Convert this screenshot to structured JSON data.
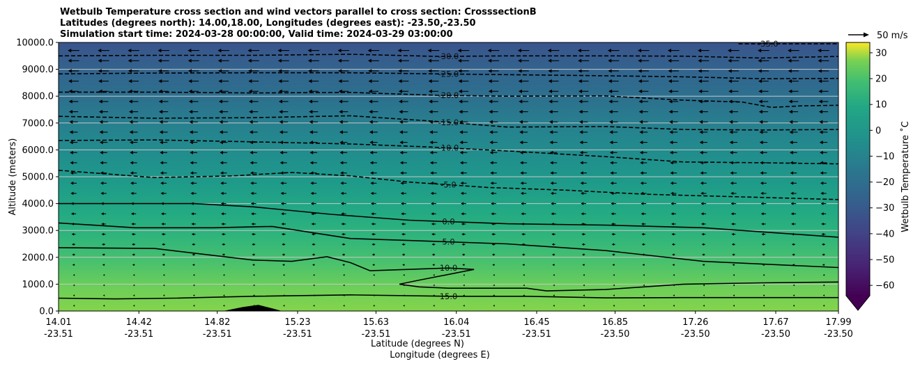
{
  "chart_data": {
    "type": "contour",
    "title_lines": [
      "Wetbulb Temperature cross section and wind vectors parallel to cross section: CrosssectionB",
      "Latitudes (degrees north): 14.00,18.00, Longitudes (degrees east): -23.50,-23.50",
      "Simulation start time: 2024-03-28 00:00:00, Valid time: 2024-03-29 03:00:00"
    ],
    "xlabel_lat": "Latitude (degrees N)",
    "xlabel_lon": "Longitude (degrees E)",
    "ylabel": "Altitude (meters)",
    "xlim": [
      14.01,
      17.99
    ],
    "ylim": [
      0,
      10000
    ],
    "x_ticks": [
      {
        "lat": "14.01",
        "lon": "-23.51",
        "value": 14.01
      },
      {
        "lat": "14.42",
        "lon": "-23.51",
        "value": 14.42
      },
      {
        "lat": "14.82",
        "lon": "-23.51",
        "value": 14.82
      },
      {
        "lat": "15.23",
        "lon": "-23.51",
        "value": 15.23
      },
      {
        "lat": "15.63",
        "lon": "-23.51",
        "value": 15.63
      },
      {
        "lat": "16.04",
        "lon": "-23.51",
        "value": 16.04
      },
      {
        "lat": "16.45",
        "lon": "-23.51",
        "value": 16.45
      },
      {
        "lat": "16.85",
        "lon": "-23.50",
        "value": 16.85
      },
      {
        "lat": "17.26",
        "lon": "-23.50",
        "value": 17.26
      },
      {
        "lat": "17.67",
        "lon": "-23.50",
        "value": 17.67
      },
      {
        "lat": "17.99",
        "lon": "-23.50",
        "value": 17.99
      }
    ],
    "y_ticks": [
      {
        "label": "0.0",
        "value": 0
      },
      {
        "label": "1000.0",
        "value": 1000
      },
      {
        "label": "2000.0",
        "value": 2000
      },
      {
        "label": "3000.0",
        "value": 3000
      },
      {
        "label": "4000.0",
        "value": 4000
      },
      {
        "label": "5000.0",
        "value": 5000
      },
      {
        "label": "6000.0",
        "value": 6000
      },
      {
        "label": "7000.0",
        "value": 7000
      },
      {
        "label": "8000.0",
        "value": 8000
      },
      {
        "label": "9000.0",
        "value": 9000
      },
      {
        "label": "10000.0",
        "value": 10000
      }
    ],
    "grid": "horizontal",
    "colorbar": {
      "label": "Wetbulb Temperature $^\\circ$C",
      "label_display": "Wetbulb Temperature ˚C",
      "range": [
        -64,
        34
      ],
      "ticks": [
        "30",
        "20",
        "10",
        "0",
        "−10",
        "−20",
        "−30",
        "−40",
        "−50",
        "−60"
      ],
      "tick_values": [
        30,
        20,
        10,
        0,
        -10,
        -20,
        -30,
        -40,
        -50,
        -60
      ],
      "extend": "min",
      "colormap": "viridis"
    },
    "quiver_key": {
      "label": "50 m/s",
      "speed": 50
    },
    "wind_direction": "toward decreasing latitude (southward)",
    "contour_lines": [
      {
        "level": -35,
        "label": "-35.0",
        "style": "dashed",
        "points": [
          [
            17.48,
            9950
          ],
          [
            17.99,
            9950
          ]
        ]
      },
      {
        "level": -30,
        "label": "-30.0",
        "style": "dashed",
        "points": [
          [
            14.01,
            9500
          ],
          [
            14.5,
            9520
          ],
          [
            15.0,
            9520
          ],
          [
            15.5,
            9560
          ],
          [
            15.95,
            9480
          ],
          [
            16.3,
            9500
          ],
          [
            16.8,
            9500
          ],
          [
            17.2,
            9490
          ],
          [
            17.6,
            9420
          ],
          [
            17.99,
            9480
          ]
        ]
      },
      {
        "level": -25,
        "label": "-25.0",
        "style": "dashed",
        "points": [
          [
            14.01,
            8830
          ],
          [
            14.5,
            8860
          ],
          [
            15.0,
            8870
          ],
          [
            15.5,
            8870
          ],
          [
            15.95,
            8830
          ],
          [
            16.3,
            8800
          ],
          [
            16.8,
            8760
          ],
          [
            17.2,
            8720
          ],
          [
            17.6,
            8650
          ],
          [
            17.99,
            8660
          ]
        ]
      },
      {
        "level": -20,
        "label": "-20.0",
        "style": "dashed",
        "points": [
          [
            14.01,
            8150
          ],
          [
            14.5,
            8150
          ],
          [
            15.0,
            8120
          ],
          [
            15.5,
            8140
          ],
          [
            15.95,
            8030
          ],
          [
            16.3,
            8000
          ],
          [
            16.8,
            8010
          ],
          [
            17.2,
            7850
          ],
          [
            17.5,
            7780
          ],
          [
            17.65,
            7580
          ],
          [
            17.8,
            7640
          ],
          [
            17.99,
            7660
          ]
        ]
      },
      {
        "level": -15,
        "label": "-15.0",
        "style": "dashed",
        "points": [
          [
            14.01,
            7250
          ],
          [
            14.5,
            7180
          ],
          [
            15.0,
            7200
          ],
          [
            15.5,
            7270
          ],
          [
            15.9,
            7080
          ],
          [
            16.3,
            6850
          ],
          [
            16.8,
            6870
          ],
          [
            17.2,
            6760
          ],
          [
            17.6,
            6740
          ],
          [
            17.99,
            6760
          ]
        ]
      },
      {
        "level": -10,
        "label": "-10.0",
        "style": "dashed",
        "points": [
          [
            14.01,
            6350
          ],
          [
            14.5,
            6370
          ],
          [
            15.0,
            6300
          ],
          [
            15.5,
            6220
          ],
          [
            15.9,
            6110
          ],
          [
            16.3,
            5960
          ],
          [
            16.8,
            5750
          ],
          [
            17.2,
            5550
          ],
          [
            17.6,
            5520
          ],
          [
            17.99,
            5480
          ]
        ]
      },
      {
        "level": -5,
        "label": "-5.0",
        "style": "dashed",
        "points": [
          [
            14.01,
            5240
          ],
          [
            14.5,
            4970
          ],
          [
            14.9,
            5030
          ],
          [
            15.2,
            5160
          ],
          [
            15.5,
            5030
          ],
          [
            15.8,
            4800
          ],
          [
            16.2,
            4600
          ],
          [
            16.6,
            4500
          ],
          [
            17.0,
            4350
          ],
          [
            17.5,
            4250
          ],
          [
            17.99,
            4150
          ]
        ]
      },
      {
        "level": 0,
        "label": "0.0",
        "style": "solid",
        "points": [
          [
            14.01,
            4000
          ],
          [
            14.4,
            4000
          ],
          [
            14.7,
            4000
          ],
          [
            15.0,
            3880
          ],
          [
            15.4,
            3600
          ],
          [
            15.8,
            3380
          ],
          [
            16.3,
            3250
          ],
          [
            16.8,
            3200
          ],
          [
            17.3,
            3100
          ],
          [
            17.99,
            2750
          ]
        ]
      },
      {
        "level": 5,
        "label": "5.0",
        "style": "solid",
        "points": [
          [
            14.01,
            3280
          ],
          [
            14.4,
            3100
          ],
          [
            14.8,
            3100
          ],
          [
            15.1,
            3150
          ],
          [
            15.5,
            2700
          ],
          [
            15.9,
            2600
          ],
          [
            16.3,
            2500
          ],
          [
            16.8,
            2250
          ],
          [
            17.3,
            1850
          ],
          [
            17.99,
            1620
          ]
        ]
      },
      {
        "level": 10,
        "label": "10.0",
        "style": "solid",
        "points": [
          [
            14.01,
            2360
          ],
          [
            14.5,
            2330
          ],
          [
            15.0,
            1900
          ],
          [
            15.2,
            1850
          ],
          [
            15.38,
            2020
          ],
          [
            15.5,
            1800
          ],
          [
            15.6,
            1500
          ],
          [
            16.0,
            1600
          ],
          [
            16.13,
            1550
          ],
          [
            15.85,
            1150
          ],
          [
            15.75,
            1000
          ],
          [
            15.85,
            900
          ],
          [
            16.0,
            850
          ],
          [
            16.4,
            850
          ],
          [
            16.5,
            750
          ],
          [
            16.8,
            800
          ],
          [
            17.2,
            1000
          ],
          [
            17.6,
            1050
          ],
          [
            17.99,
            1080
          ]
        ]
      },
      {
        "level": 15,
        "label": "15.0",
        "style": "solid",
        "points": [
          [
            14.01,
            480
          ],
          [
            14.3,
            450
          ],
          [
            14.6,
            480
          ],
          [
            15.0,
            550
          ],
          [
            15.5,
            600
          ],
          [
            16.0,
            550
          ],
          [
            16.4,
            550
          ],
          [
            16.8,
            490
          ],
          [
            17.2,
            500
          ],
          [
            17.6,
            500
          ],
          [
            17.99,
            500
          ]
        ]
      }
    ],
    "terrain": [
      [
        14.85,
        0
      ],
      [
        14.95,
        150
      ],
      [
        15.03,
        230
      ],
      [
        15.1,
        100
      ],
      [
        15.15,
        0
      ]
    ]
  }
}
